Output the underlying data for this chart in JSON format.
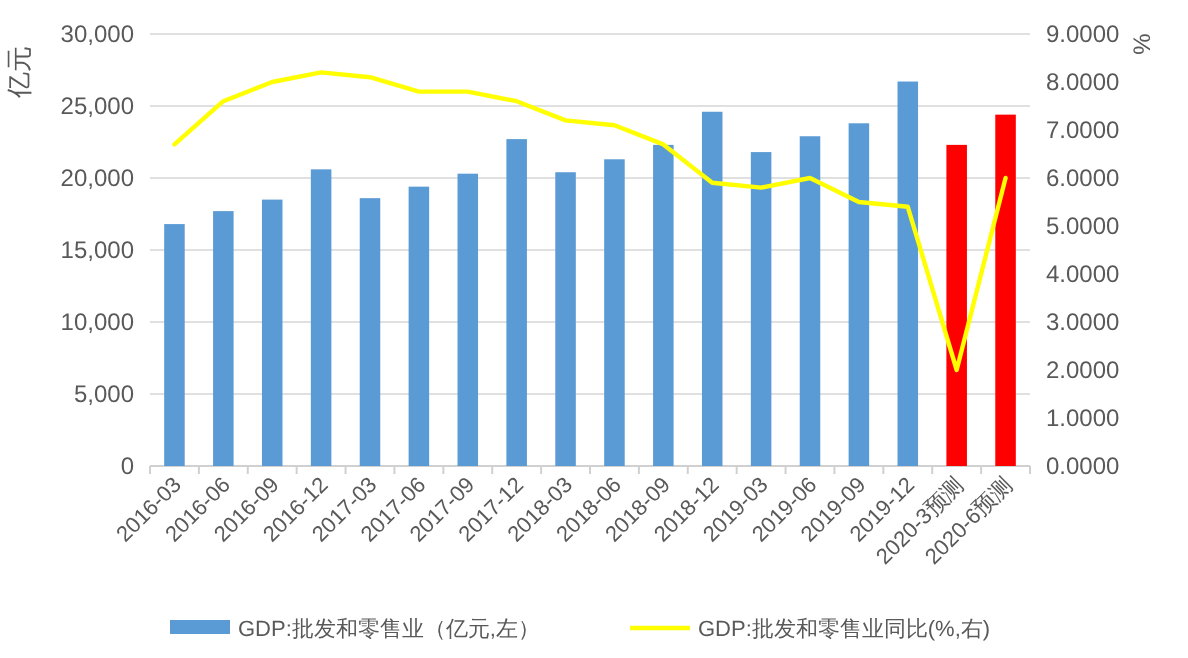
{
  "chart_data": {
    "type": "bar",
    "ylabel": "亿元",
    "y2label": "%",
    "categories": [
      "2016-03",
      "2016-06",
      "2016-09",
      "2016-12",
      "2017-03",
      "2017-06",
      "2017-09",
      "2017-12",
      "2018-03",
      "2018-06",
      "2018-09",
      "2018-12",
      "2019-03",
      "2019-06",
      "2019-09",
      "2019-12",
      "2020-3预测",
      "2020-6预测"
    ],
    "series": [
      {
        "name": "GDP:批发和零售业（亿元,左）",
        "color": "#5b9bd5",
        "colors": [
          "#5b9bd5",
          "#5b9bd5",
          "#5b9bd5",
          "#5b9bd5",
          "#5b9bd5",
          "#5b9bd5",
          "#5b9bd5",
          "#5b9bd5",
          "#5b9bd5",
          "#5b9bd5",
          "#5b9bd5",
          "#5b9bd5",
          "#5b9bd5",
          "#5b9bd5",
          "#5b9bd5",
          "#5b9bd5",
          "#ff0000",
          "#ff0000"
        ],
        "values": [
          16800,
          17700,
          18500,
          20600,
          18600,
          19400,
          20300,
          22700,
          20400,
          21300,
          22300,
          24600,
          21800,
          22900,
          23800,
          26700,
          22300,
          24400
        ]
      },
      {
        "name": "GDP:批发和零售业同比(%,右)",
        "type": "line",
        "axis": "y2",
        "color": "#ffff00",
        "values": [
          6.7,
          7.6,
          8.0,
          8.2,
          8.1,
          7.8,
          7.8,
          7.6,
          7.2,
          7.1,
          6.7,
          5.9,
          5.8,
          6.0,
          5.5,
          5.4,
          2.0,
          6.0
        ]
      }
    ],
    "ylim": [
      0,
      30000
    ],
    "yticks": [
      {
        "value": 0,
        "label": "0"
      },
      {
        "value": 5000,
        "label": "5,000"
      },
      {
        "value": 10000,
        "label": "10,000"
      },
      {
        "value": 15000,
        "label": "15,000"
      },
      {
        "value": 20000,
        "label": "20,000"
      },
      {
        "value": 25000,
        "label": "25,000"
      },
      {
        "value": 30000,
        "label": "30,000"
      }
    ],
    "y2lim": [
      0,
      9
    ],
    "y2ticks": [
      {
        "value": 0,
        "label": "0.0000"
      },
      {
        "value": 1,
        "label": "1.0000"
      },
      {
        "value": 2,
        "label": "2.0000"
      },
      {
        "value": 3,
        "label": "3.0000"
      },
      {
        "value": 4,
        "label": "4.0000"
      },
      {
        "value": 5,
        "label": "5.0000"
      },
      {
        "value": 6,
        "label": "6.0000"
      },
      {
        "value": 7,
        "label": "7.0000"
      },
      {
        "value": 8,
        "label": "8.0000"
      },
      {
        "value": 9,
        "label": "9.0000"
      }
    ],
    "grid": "y",
    "legend": "bottom"
  }
}
